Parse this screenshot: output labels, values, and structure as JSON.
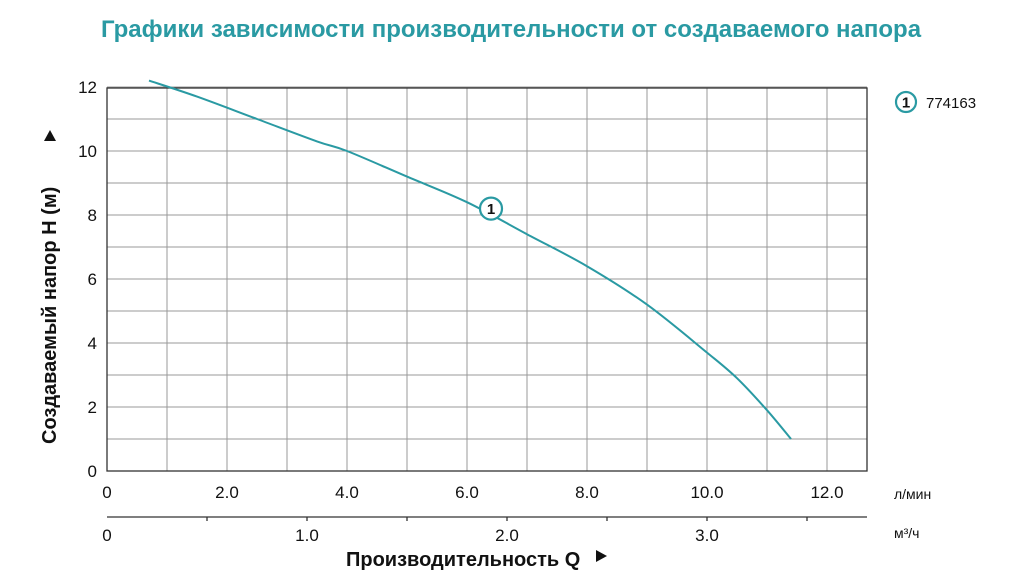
{
  "chart_data": {
    "type": "line",
    "title": "Графики зависимости производительности от создаваемого напора",
    "xlabel": "Производительность Q",
    "ylabel": "Создаваемый напор H (м)",
    "x_unit": "л/мин",
    "x2_unit": "м³/ч",
    "xlim": [
      0,
      12.6
    ],
    "ylim": [
      0,
      12.2
    ],
    "x_ticks": [
      "0",
      "2.0",
      "4.0",
      "6.0",
      "8.0",
      "10.0",
      "12.0"
    ],
    "x_tick_values": [
      0,
      2,
      4,
      6,
      8,
      10,
      12
    ],
    "x2_ticks": [
      "0",
      "1.0",
      "2.0",
      "3.0"
    ],
    "x2_tick_values": [
      0,
      1,
      2,
      3
    ],
    "y_ticks": [
      "0",
      "2",
      "4",
      "6",
      "8",
      "10",
      "12"
    ],
    "y_tick_values": [
      0,
      2,
      4,
      6,
      8,
      10,
      12
    ],
    "grid": true,
    "legend_position": "top-right",
    "series": [
      {
        "name": "774163",
        "marker_label": "1",
        "marker_point": [
          6.4,
          8.2
        ],
        "x": [
          0.7,
          1.5,
          2.5,
          3.5,
          4.0,
          5.0,
          6.0,
          7.0,
          8.0,
          9.0,
          10.0,
          10.5,
          11.0,
          11.4
        ],
        "y": [
          12.2,
          11.7,
          11.0,
          10.3,
          10.0,
          9.2,
          8.4,
          7.4,
          6.4,
          5.2,
          3.7,
          2.9,
          1.9,
          1.0
        ]
      }
    ]
  },
  "colors": {
    "title": "#2a9aa3",
    "curve": "#2a9aa3",
    "grid": "#999999",
    "axis": "#333333"
  }
}
